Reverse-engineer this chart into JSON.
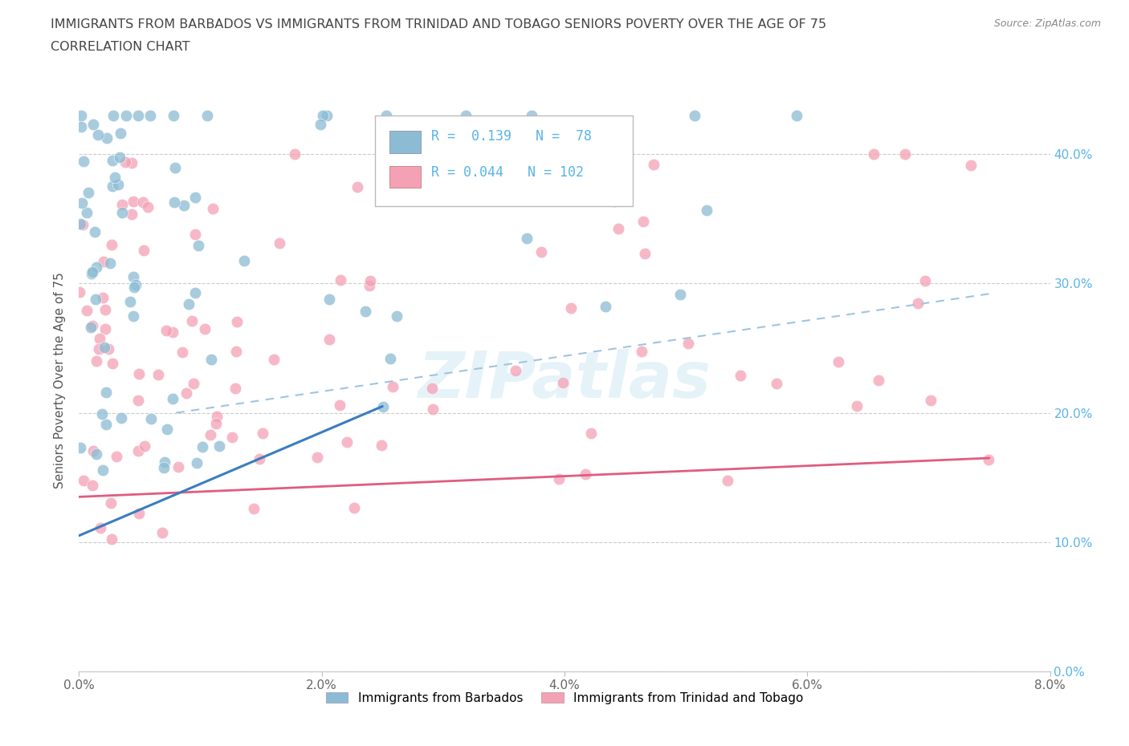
{
  "title_line1": "IMMIGRANTS FROM BARBADOS VS IMMIGRANTS FROM TRINIDAD AND TOBAGO SENIORS POVERTY OVER THE AGE OF 75",
  "title_line2": "CORRELATION CHART",
  "source": "Source: ZipAtlas.com",
  "ylabel": "Seniors Poverty Over the Age of 75",
  "xlim": [
    0.0,
    0.08
  ],
  "ylim": [
    0.0,
    0.45
  ],
  "xtick_vals": [
    0.0,
    0.02,
    0.04,
    0.06,
    0.08
  ],
  "xtick_labels": [
    "0.0%",
    "2.0%",
    "4.0%",
    "6.0%",
    "8.0%"
  ],
  "ytick_vals": [
    0.0,
    0.1,
    0.2,
    0.3,
    0.4
  ],
  "ytick_labels_right": [
    "0.0%",
    "10.0%",
    "20.0%",
    "30.0%",
    "40.0%"
  ],
  "color_barbados": "#8bbcd4",
  "color_trinidad": "#f4a0b5",
  "color_barbados_line": "#3a7dbf",
  "color_trinidad_line": "#e05c80",
  "color_dashed_line": "#a0c4e0",
  "legend_label_barbados": "Immigrants from Barbados",
  "legend_label_trinidad": "Immigrants from Trinidad and Tobago",
  "R_barbados": 0.139,
  "N_barbados": 78,
  "R_trinidad": 0.044,
  "N_trinidad": 102,
  "watermark": "ZIPatlas",
  "right_tick_color": "#5ab4e8",
  "title_color": "#444444",
  "source_color": "#888888",
  "grid_color": "#cccccc"
}
